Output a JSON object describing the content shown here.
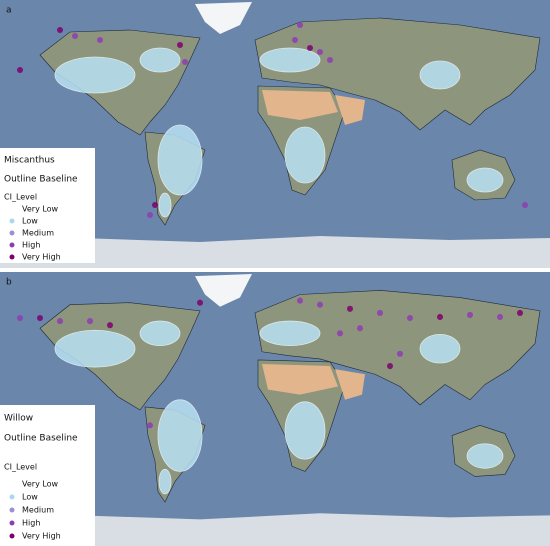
{
  "panels": [
    {
      "label": "a",
      "legend": {
        "title": "Miscanthus",
        "subtitle": "Outline Baseline",
        "heading": "CI_Level",
        "items": [
          {
            "label": "Very Low",
            "color": "#ffffff"
          },
          {
            "label": "Low",
            "color": "#a9d8ee"
          },
          {
            "label": "Medium",
            "color": "#9a8fd6"
          },
          {
            "label": "High",
            "color": "#8e3cb4"
          },
          {
            "label": "Very High",
            "color": "#7d006f"
          }
        ]
      }
    },
    {
      "label": "b",
      "legend": {
        "title": "Willow",
        "subtitle": "Outline Baseline",
        "heading": "CI_Level",
        "items": [
          {
            "label": "Very Low",
            "color": "#ffffff"
          },
          {
            "label": "Low",
            "color": "#a9d8ee"
          },
          {
            "label": "Medium",
            "color": "#9a8fd6"
          },
          {
            "label": "High",
            "color": "#8e3cb4"
          },
          {
            "label": "Very High",
            "color": "#7d006f"
          }
        ]
      }
    }
  ]
}
